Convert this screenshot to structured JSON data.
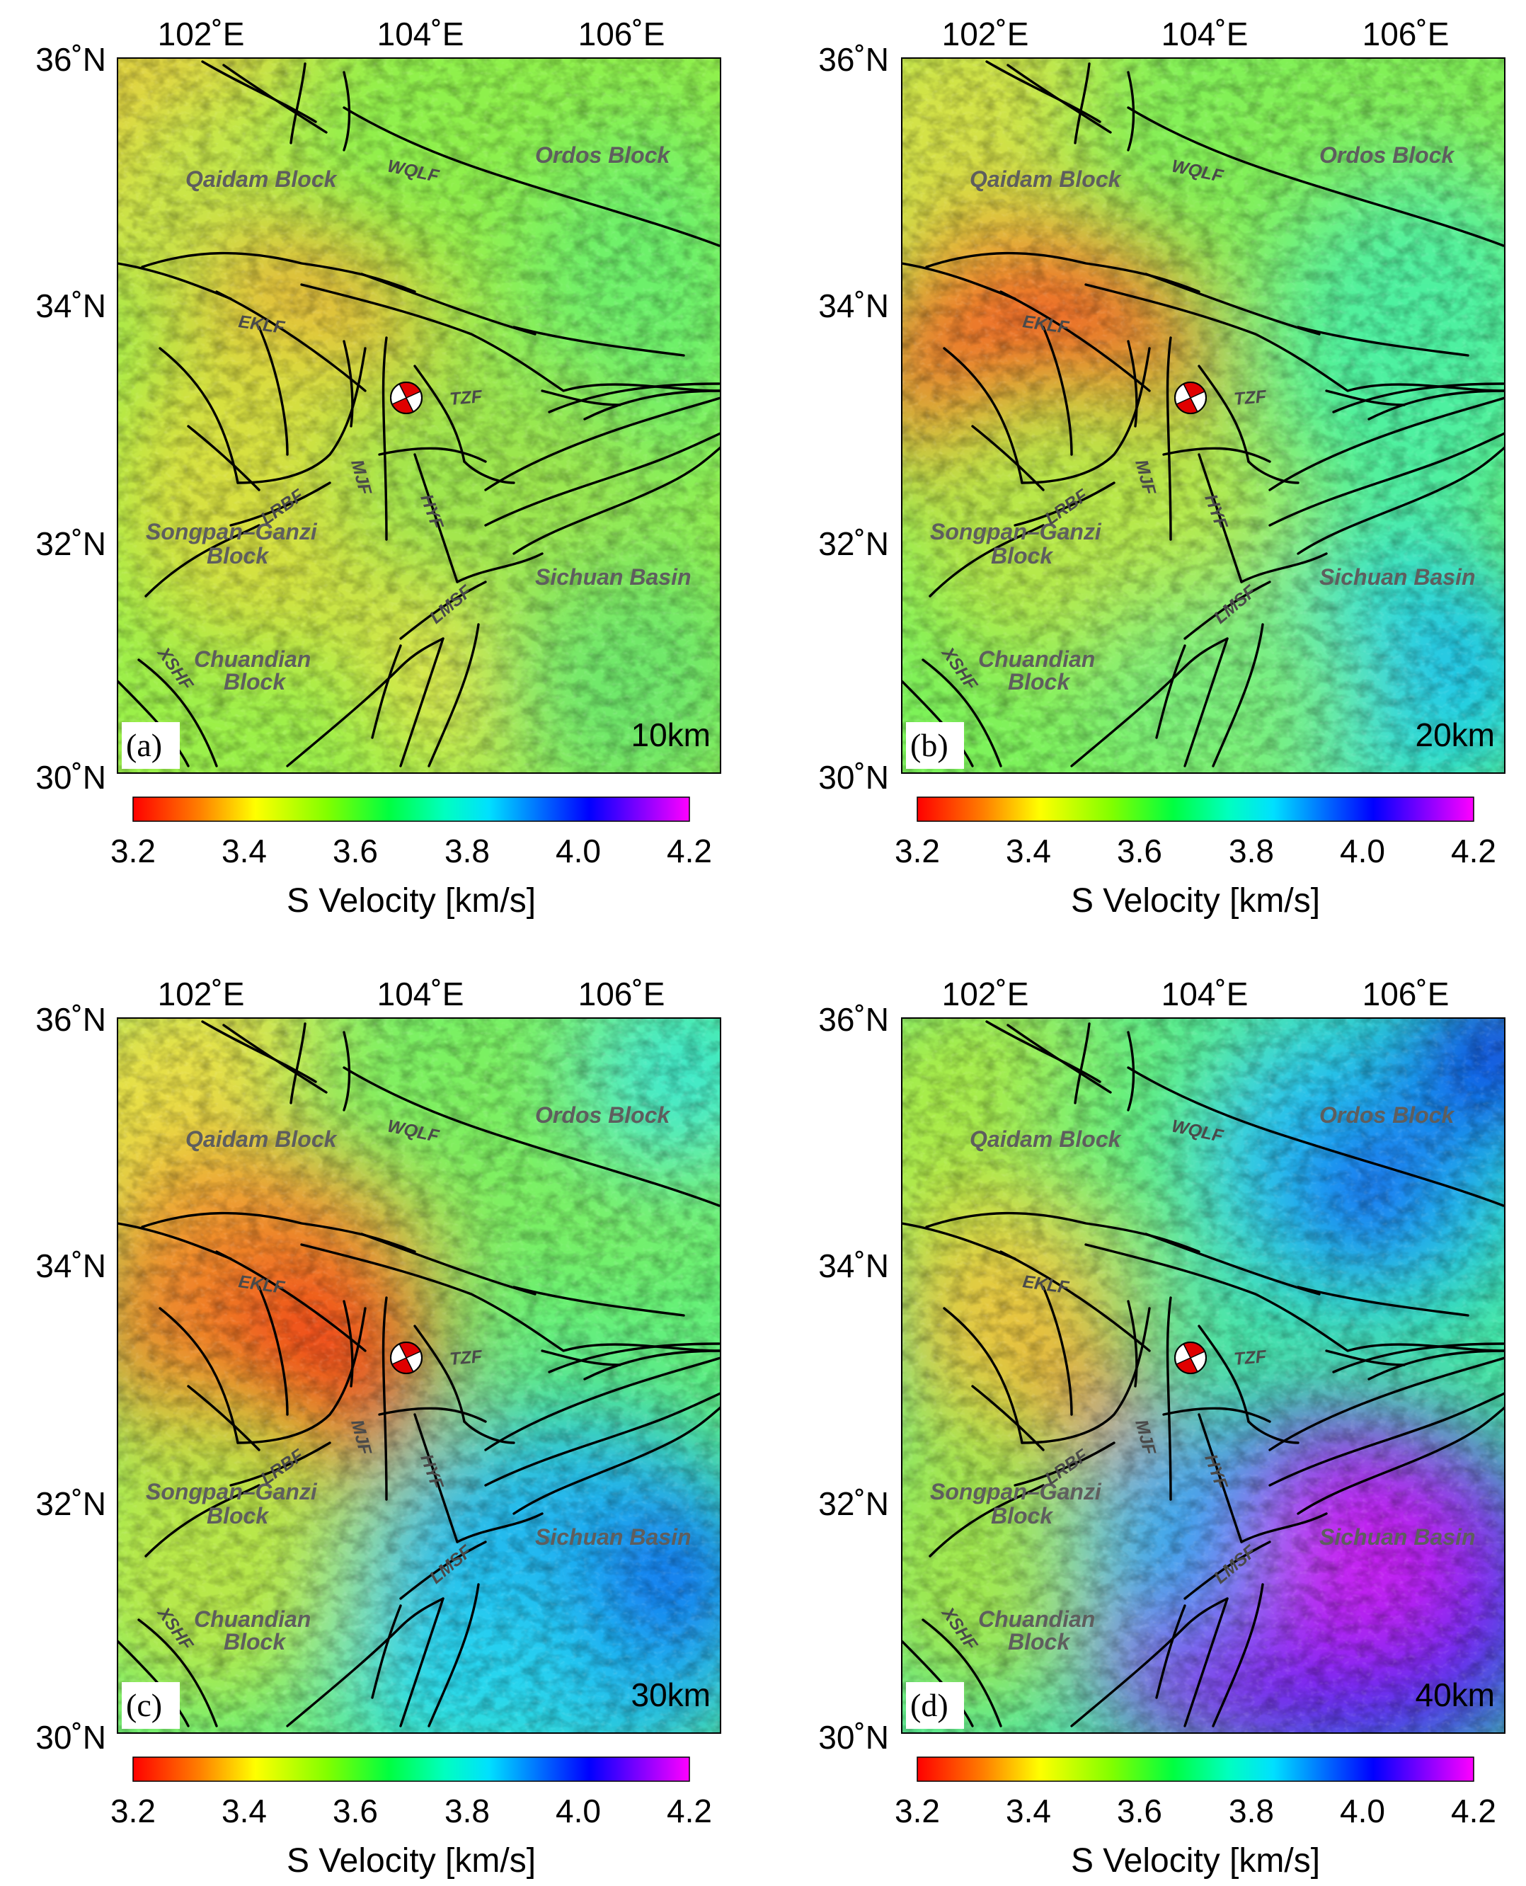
{
  "colors": {
    "scale": [
      "#ff0000",
      "#ff7f00",
      "#ffff00",
      "#7fff00",
      "#00ff00",
      "#00ffc0",
      "#00ffff",
      "#0000ff",
      "#ff00ff"
    ],
    "fault": "#000000",
    "label_gray": "#5e5e5e"
  },
  "axes": {
    "x_ticks": [
      "102˚E",
      "104˚E",
      "106˚E"
    ],
    "y_ticks": [
      "36˚N",
      "34˚N",
      "32˚N",
      "30˚N"
    ]
  },
  "colorbar": {
    "label": "S Velocity [km/s]",
    "ticks": [
      "3.2",
      "3.4",
      "3.6",
      "3.8",
      "4.0",
      "4.2"
    ],
    "min": 3.2,
    "max": 4.2
  },
  "regions": {
    "qaidam": "Qaidam Block",
    "ordos": "Ordos Block",
    "songpan1": "Songpan–Ganzi",
    "songpan2": "Block",
    "sichuan": "Sichuan Basin",
    "chuandian1": "Chuandian",
    "chuandian2": "Block"
  },
  "faults": {
    "wqlf": "WQLF",
    "eklf": "EKLF",
    "tzf": "TZF",
    "mjf": "MJF",
    "hyf": "HYF",
    "lrbf": "LRBF",
    "lmsf": "LMSF",
    "xshf": "XSHF"
  },
  "panels": [
    {
      "letter": "(a)",
      "depth": "10km"
    },
    {
      "letter": "(b)",
      "depth": "20km"
    },
    {
      "letter": "(c)",
      "depth": "30km"
    },
    {
      "letter": "(d)",
      "depth": "40km"
    }
  ]
}
